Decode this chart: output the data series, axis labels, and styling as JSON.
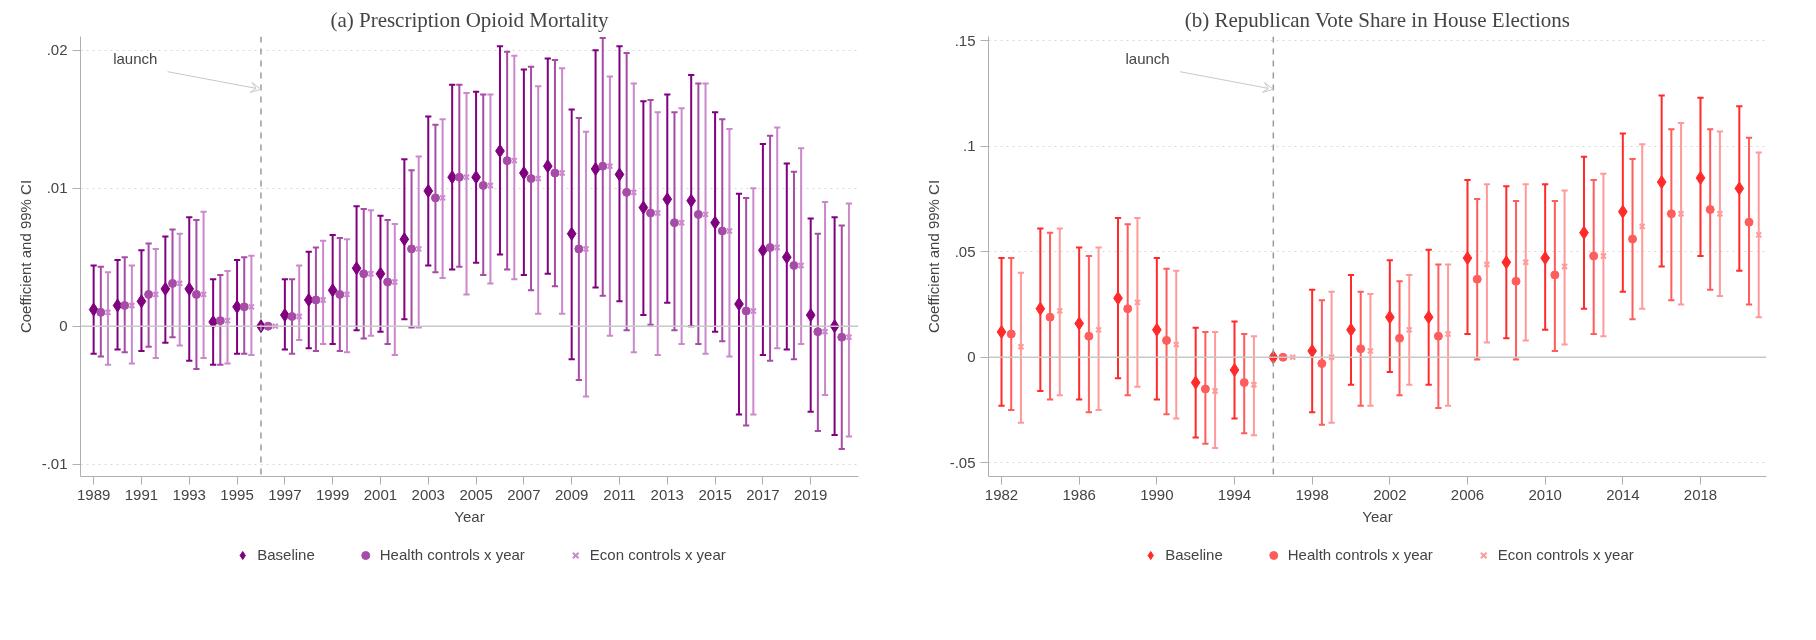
{
  "chart_data": [
    {
      "type": "scatter",
      "title": "(a) Prescription Opioid Mortality",
      "xlabel": "Year",
      "ylabel": "Coefficient and 99% CI",
      "xlim": [
        1988.45,
        2021
      ],
      "xticks": [
        1989,
        1991,
        1993,
        1995,
        1997,
        1999,
        2001,
        2003,
        2005,
        2007,
        2009,
        2011,
        2013,
        2015,
        2017,
        2019
      ],
      "ylim": [
        -0.0109,
        0.021
      ],
      "yticks": [
        {
          "value": -0.01,
          "label": "-.01"
        },
        0,
        {
          "value": 0.01,
          "label": ".01"
        },
        {
          "value": 0.02,
          "label": ".02"
        }
      ],
      "grid": "y",
      "legend": "bottom",
      "ref_lines": [
        {
          "axis": "x",
          "value": 1996,
          "label": "launch",
          "color": "#999999",
          "line_style": "dashed"
        },
        {
          "axis": "y",
          "value": 0,
          "color": "#c8c8c8",
          "line_style": "solid"
        }
      ],
      "series": [
        {
          "name": "Baseline",
          "color": "#800080",
          "marker": "diamond",
          "x": [
            1989,
            1990,
            1991,
            1992,
            1993,
            1994,
            1995,
            1996,
            1997,
            1998,
            1999,
            2000,
            2001,
            2002,
            2003,
            2004,
            2005,
            2006,
            2007,
            2008,
            2009,
            2010,
            2011,
            2012,
            2013,
            2014,
            2015,
            2016,
            2017,
            2018,
            2019,
            2020
          ],
          "values": [
            0.0012,
            0.0015,
            0.0018,
            0.0027,
            0.0027,
            0.0003,
            0.0014,
            0,
            0.0008,
            0.0019,
            0.0026,
            0.0042,
            0.0038,
            0.0063,
            0.0098,
            0.0108,
            0.0108,
            0.0127,
            0.0111,
            0.0116,
            0.0067,
            0.0114,
            0.011,
            0.0086,
            0.0092,
            0.0091,
            0.0075,
            0.0016,
            0.0055,
            0.005,
            0.0008,
            0
          ],
          "errors": [
            [
              -0.002,
              0.0044
            ],
            [
              -0.0017,
              0.0048
            ],
            [
              -0.0018,
              0.0055
            ],
            [
              -0.0012,
              0.0065
            ],
            [
              -0.0025,
              0.0079
            ],
            [
              -0.0028,
              0.0034
            ],
            [
              -0.002,
              0.0048
            ],
            null,
            [
              -0.0017,
              0.0034
            ],
            [
              -0.0016,
              0.0054
            ],
            [
              -0.0013,
              0.0066
            ],
            [
              -0.0003,
              0.0087
            ],
            [
              -0.0004,
              0.008
            ],
            [
              0.0005,
              0.0121
            ],
            [
              0.0044,
              0.0152
            ],
            [
              0.0041,
              0.0175
            ],
            [
              0.0046,
              0.017
            ],
            [
              0.0052,
              0.0203
            ],
            [
              0.0037,
              0.0186
            ],
            [
              0.0038,
              0.0194
            ],
            [
              -0.0024,
              0.0157
            ],
            [
              0.0028,
              0.02
            ],
            [
              0.0018,
              0.0203
            ],
            [
              0.0008,
              0.0163
            ],
            [
              0.0017,
              0.0168
            ],
            [
              0,
              0.0182
            ],
            [
              -0.0004,
              0.0155
            ],
            [
              -0.0064,
              0.0096
            ],
            [
              -0.0021,
              0.0132
            ],
            [
              -0.0017,
              0.0118
            ],
            [
              -0.0062,
              0.0078
            ],
            [
              -0.0079,
              0.0079
            ]
          ]
        },
        {
          "name": "Health controls x year",
          "color": "#a64ca6",
          "marker": "circle",
          "x": [
            1989.3,
            1990.3,
            1991.3,
            1992.3,
            1993.3,
            1994.3,
            1995.3,
            1996.3,
            1997.3,
            1998.3,
            1999.3,
            2000.3,
            2001.3,
            2002.3,
            2003.3,
            2004.3,
            2005.3,
            2006.3,
            2007.3,
            2008.3,
            2009.3,
            2010.3,
            2011.3,
            2012.3,
            2013.3,
            2014.3,
            2015.3,
            2016.3,
            2017.3,
            2018.3,
            2019.3,
            2020.3
          ],
          "values": [
            0.001,
            0.0015,
            0.0023,
            0.0031,
            0.0023,
            0.0004,
            0.0014,
            0,
            0.0007,
            0.0019,
            0.0023,
            0.0038,
            0.0032,
            0.0056,
            0.0093,
            0.0108,
            0.0102,
            0.012,
            0.0107,
            0.0111,
            0.0056,
            0.0116,
            0.0097,
            0.0082,
            0.0075,
            0.0081,
            0.0069,
            0.0011,
            0.0057,
            0.0044,
            -0.0004,
            -0.0008
          ],
          "errors": [
            [
              -0.0022,
              0.0043
            ],
            [
              -0.0019,
              0.005
            ],
            [
              -0.0015,
              0.006
            ],
            [
              -0.0008,
              0.007
            ],
            [
              -0.0031,
              0.0077
            ],
            [
              -0.0028,
              0.0037
            ],
            [
              -0.002,
              0.005
            ],
            null,
            [
              -0.002,
              0.0034
            ],
            [
              -0.0018,
              0.0057
            ],
            [
              -0.0018,
              0.0064
            ],
            [
              -0.0009,
              0.0085
            ],
            [
              -0.0013,
              0.0077
            ],
            [
              -0.0001,
              0.0113
            ],
            [
              0.0039,
              0.0146
            ],
            [
              0.0043,
              0.0175
            ],
            [
              0.0037,
              0.0168
            ],
            [
              0.0041,
              0.0199
            ],
            [
              0.0026,
              0.0188
            ],
            [
              0.0029,
              0.0193
            ],
            [
              -0.0039,
              0.0151
            ],
            [
              0.0022,
              0.0209
            ],
            [
              -0.0003,
              0.0198
            ],
            [
              0.0001,
              0.0164
            ],
            [
              -0.0003,
              0.0155
            ],
            [
              -0.0013,
              0.0176
            ],
            [
              -0.0011,
              0.015
            ],
            [
              -0.0072,
              0.0093
            ],
            [
              -0.0025,
              0.0138
            ],
            [
              -0.0024,
              0.0112
            ],
            [
              -0.0076,
              0.0067
            ],
            [
              -0.0089,
              0.0073
            ]
          ]
        },
        {
          "name": "Econ controls x year",
          "color": "#cc88cc",
          "marker": "cross",
          "x": [
            1989.6,
            1990.6,
            1991.6,
            1992.6,
            1993.6,
            1994.6,
            1995.6,
            1996.6,
            1997.6,
            1998.6,
            1999.6,
            2000.6,
            2001.6,
            2002.6,
            2003.6,
            2004.6,
            2005.6,
            2006.6,
            2007.6,
            2008.6,
            2009.6,
            2010.6,
            2011.6,
            2012.6,
            2013.6,
            2014.6,
            2015.6,
            2016.6,
            2017.6,
            2018.6,
            2019.6,
            2020.6
          ],
          "values": [
            0.001,
            0.0015,
            0.0023,
            0.0031,
            0.0023,
            0.0004,
            0.0014,
            0,
            0.0007,
            0.0019,
            0.0023,
            0.0038,
            0.0032,
            0.0056,
            0.0093,
            0.0108,
            0.0102,
            0.012,
            0.0107,
            0.0111,
            0.0056,
            0.0116,
            0.0097,
            0.0082,
            0.0075,
            0.0081,
            0.0069,
            0.0011,
            0.0057,
            0.0044,
            -0.0004,
            -0.0008
          ],
          "errors": [
            [
              -0.0028,
              0.0039
            ],
            [
              -0.0027,
              0.0044
            ],
            [
              -0.0023,
              0.0056
            ],
            [
              -0.0014,
              0.0067
            ],
            [
              -0.0023,
              0.0083
            ],
            [
              -0.0027,
              0.004
            ],
            [
              -0.0021,
              0.0051
            ],
            null,
            [
              -0.001,
              0.0044
            ],
            [
              -0.0013,
              0.0062
            ],
            [
              -0.0019,
              0.0063
            ],
            [
              -0.0007,
              0.0084
            ],
            [
              -0.0021,
              0.0074
            ],
            [
              -0.0001,
              0.0123
            ],
            [
              0.0035,
              0.015
            ],
            [
              0.0023,
              0.0169
            ],
            [
              0.0031,
              0.0168
            ],
            [
              0.0034,
              0.0196
            ],
            [
              0.0009,
              0.0174
            ],
            [
              0.0009,
              0.0187
            ],
            [
              -0.0051,
              0.0141
            ],
            [
              -0.0007,
              0.0181
            ],
            [
              -0.0019,
              0.0176
            ],
            [
              -0.0021,
              0.0155
            ],
            [
              -0.0013,
              0.0158
            ],
            [
              -0.002,
              0.0176
            ],
            [
              -0.0022,
              0.0143
            ],
            [
              -0.0064,
              0.01
            ],
            [
              -0.0016,
              0.0144
            ],
            [
              -0.0013,
              0.0129
            ],
            [
              -0.005,
              0.009
            ],
            [
              -0.008,
              0.0089
            ]
          ]
        }
      ]
    },
    {
      "type": "scatter",
      "title": "(b) Republican Vote Share in House Elections",
      "xlabel": "Year",
      "ylabel": "Coefficient and 99% CI",
      "xlim": [
        1981.33,
        2021.4
      ],
      "xticks": [
        1982,
        1986,
        1990,
        1994,
        1998,
        2002,
        2006,
        2010,
        2014,
        2018
      ],
      "ylim": [
        -0.0565,
        0.152
      ],
      "yticks": [
        {
          "value": -0.05,
          "label": "-.05"
        },
        0,
        {
          "value": 0.05,
          "label": ".05"
        },
        {
          "value": 0.1,
          "label": ".1"
        },
        {
          "value": 0.15,
          "label": ".15"
        }
      ],
      "grid": "y",
      "legend": "bottom",
      "ref_lines": [
        {
          "axis": "x",
          "value": 1996,
          "label": "launch",
          "color": "#999999",
          "line_style": "dashed"
        },
        {
          "axis": "y",
          "value": 0,
          "color": "#c8c8c8",
          "line_style": "solid"
        }
      ],
      "series": [
        {
          "name": "Baseline",
          "color": "#ff2a2a",
          "marker": "diamond",
          "x": [
            1982,
            1984,
            1986,
            1988,
            1990,
            1992,
            1994,
            1996,
            1998,
            2000,
            2002,
            2004,
            2006,
            2008,
            2010,
            2012,
            2014,
            2016,
            2018,
            2020
          ],
          "values": [
            0.012,
            0.023,
            0.016,
            0.028,
            0.013,
            -0.012,
            -0.006,
            0,
            0.003,
            0.013,
            0.019,
            0.019,
            0.047,
            0.045,
            0.047,
            0.059,
            0.069,
            0.083,
            0.085,
            0.08
          ],
          "errors": [
            [
              -0.023,
              0.047
            ],
            [
              -0.016,
              0.061
            ],
            [
              -0.02,
              0.052
            ],
            [
              -0.01,
              0.066
            ],
            [
              -0.02,
              0.047
            ],
            [
              -0.038,
              0.014
            ],
            [
              -0.029,
              0.017
            ],
            null,
            [
              -0.026,
              0.032
            ],
            [
              -0.013,
              0.039
            ],
            [
              -0.007,
              0.046
            ],
            [
              -0.013,
              0.051
            ],
            [
              0.011,
              0.084
            ],
            [
              0.009,
              0.081
            ],
            [
              0.013,
              0.082
            ],
            [
              0.023,
              0.095
            ],
            [
              0.031,
              0.106
            ],
            [
              0.043,
              0.124
            ],
            [
              0.048,
              0.123
            ],
            [
              0.041,
              0.119
            ]
          ]
        },
        {
          "name": "Health controls x year",
          "color": "#ff5c5c",
          "marker": "circle",
          "x": [
            1982.5,
            1984.5,
            1986.5,
            1988.5,
            1990.5,
            1992.5,
            1994.5,
            1996.5,
            1998.5,
            2000.5,
            2002.5,
            2004.5,
            2006.5,
            2008.5,
            2010.5,
            2012.5,
            2014.5,
            2016.5,
            2018.5,
            2020.5
          ],
          "values": [
            0.011,
            0.019,
            0.01,
            0.023,
            0.008,
            -0.015,
            -0.012,
            0,
            -0.003,
            0.004,
            0.009,
            0.01,
            0.037,
            0.036,
            0.039,
            0.048,
            0.056,
            0.068,
            0.07,
            0.064
          ],
          "errors": [
            [
              -0.025,
              0.047
            ],
            [
              -0.02,
              0.059
            ],
            [
              -0.026,
              0.048
            ],
            [
              -0.018,
              0.063
            ],
            [
              -0.027,
              0.042
            ],
            [
              -0.041,
              0.012
            ],
            [
              -0.036,
              0.011
            ],
            null,
            [
              -0.032,
              0.027
            ],
            [
              -0.023,
              0.031
            ],
            [
              -0.018,
              0.036
            ],
            [
              -0.024,
              0.044
            ],
            [
              -0.001,
              0.075
            ],
            [
              -0.001,
              0.074
            ],
            [
              0.003,
              0.074
            ],
            [
              0.011,
              0.084
            ],
            [
              0.018,
              0.094
            ],
            [
              0.027,
              0.108
            ],
            [
              0.032,
              0.108
            ],
            [
              0.025,
              0.104
            ]
          ]
        },
        {
          "name": "Econ controls x year",
          "color": "#ff9a9a",
          "marker": "cross",
          "x": [
            1983,
            1985,
            1987,
            1989,
            1991,
            1993,
            1995,
            1997,
            1999,
            2001,
            2003,
            2005,
            2007,
            2009,
            2011,
            2013,
            2015,
            2017,
            2019,
            2021
          ],
          "values": [
            0.005,
            0.022,
            0.013,
            0.026,
            0.006,
            -0.016,
            -0.013,
            0,
            0,
            0.003,
            0.013,
            0.011,
            0.044,
            0.045,
            0.043,
            0.048,
            0.062,
            0.068,
            0.068,
            0.058
          ],
          "errors": [
            [
              -0.031,
              0.04
            ],
            [
              -0.018,
              0.061
            ],
            [
              -0.025,
              0.052
            ],
            [
              -0.014,
              0.066
            ],
            [
              -0.029,
              0.041
            ],
            [
              -0.043,
              0.012
            ],
            [
              -0.037,
              0.01
            ],
            null,
            [
              -0.031,
              0.031
            ],
            [
              -0.023,
              0.03
            ],
            [
              -0.013,
              0.039
            ],
            [
              -0.023,
              0.044
            ],
            [
              0.007,
              0.082
            ],
            [
              0.008,
              0.082
            ],
            [
              0.006,
              0.079
            ],
            [
              0.01,
              0.087
            ],
            [
              0.023,
              0.101
            ],
            [
              0.025,
              0.111
            ],
            [
              0.029,
              0.107
            ],
            [
              0.019,
              0.097
            ]
          ]
        }
      ]
    }
  ]
}
